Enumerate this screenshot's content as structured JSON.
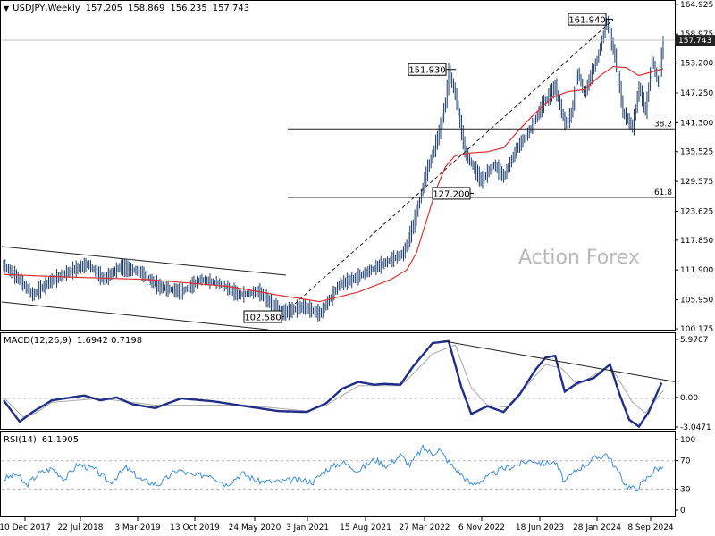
{
  "colors": {
    "price": "#1a3a68",
    "ma": "#e03030",
    "macd": "#1f2d8a",
    "signal": "#a8a8a8",
    "rsi": "#3d8fd8",
    "hline": "#202020",
    "grid_dash": "#b0b0b0",
    "last_price_bg": "#222222",
    "watermark": "#b9b9b9"
  },
  "header": {
    "symbol": "USDJPY,Weekly",
    "open": "157.205",
    "high": "158.869",
    "low": "156.235",
    "close": "157.743"
  },
  "watermark": "Action Forex",
  "chart_data": [
    {
      "type": "ohlc",
      "title": "USDJPY,Weekly",
      "ylim": [
        100.175,
        164.9
      ],
      "y_ticks": [
        "164.925",
        "158.975",
        "153.200",
        "147.250",
        "141.300",
        "135.525",
        "129.575",
        "123.625",
        "117.850",
        "111.900",
        "105.950",
        "100.175"
      ],
      "x_ticks": [
        "10 Dec 2017",
        "22 Jul 2018",
        "3 Mar 2019",
        "13 Oct 2019",
        "24 May 2020",
        "3 Jan 2021",
        "15 Aug 2021",
        "27 Mar 2022",
        "6 Nov 2022",
        "18 Jun 2023",
        "28 Jan 2024",
        "8 Sep 2024"
      ],
      "last_price": "157.743",
      "price_path": [
        [
          0,
          112.8
        ],
        [
          8,
          110.5
        ],
        [
          18,
          106.9
        ],
        [
          28,
          109.5
        ],
        [
          40,
          111.5
        ],
        [
          52,
          113.1
        ],
        [
          62,
          110.0
        ],
        [
          72,
          112.5
        ],
        [
          84,
          111.6
        ],
        [
          96,
          108.6
        ],
        [
          110,
          107.5
        ],
        [
          122,
          110.0
        ],
        [
          134,
          109.2
        ],
        [
          146,
          106.9
        ],
        [
          158,
          107.6
        ],
        [
          172,
          103.3
        ],
        [
          186,
          104.6
        ],
        [
          196,
          103.1
        ],
        [
          208,
          109.0
        ],
        [
          218,
          110.3
        ],
        [
          230,
          112.3
        ],
        [
          240,
          113.9
        ],
        [
          248,
          115.3
        ],
        [
          254,
          121.0
        ],
        [
          258,
          126.0
        ],
        [
          262,
          131.3
        ],
        [
          266,
          135.0
        ],
        [
          270,
          139.4
        ],
        [
          274,
          145.6
        ],
        [
          276,
          151.5
        ],
        [
          280,
          147.0
        ],
        [
          286,
          135.5
        ],
        [
          292,
          132.0
        ],
        [
          296,
          129.7
        ],
        [
          304,
          133.0
        ],
        [
          310,
          130.5
        ],
        [
          318,
          136.1
        ],
        [
          326,
          139.7
        ],
        [
          334,
          144.8
        ],
        [
          342,
          148.5
        ],
        [
          348,
          141.0
        ],
        [
          352,
          143.0
        ],
        [
          356,
          151.5
        ],
        [
          360,
          147.0
        ],
        [
          364,
          150.7
        ],
        [
          368,
          154.0
        ],
        [
          374,
          161.6
        ],
        [
          380,
          153.0
        ],
        [
          384,
          143.3
        ],
        [
          390,
          140.4
        ],
        [
          394,
          148.5
        ],
        [
          398,
          143.5
        ],
        [
          402,
          153.9
        ],
        [
          406,
          149.0
        ],
        [
          409,
          157.743
        ]
      ],
      "ma_path": [
        [
          0,
          111.0
        ],
        [
          40,
          110.5
        ],
        [
          90,
          110.0
        ],
        [
          140,
          108.6
        ],
        [
          170,
          106.9
        ],
        [
          196,
          105.6
        ],
        [
          220,
          107.5
        ],
        [
          240,
          110.0
        ],
        [
          250,
          111.9
        ],
        [
          256,
          115.3
        ],
        [
          262,
          121.5
        ],
        [
          268,
          127.8
        ],
        [
          274,
          132.5
        ],
        [
          280,
          134.7
        ],
        [
          290,
          135.3
        ],
        [
          300,
          135.5
        ],
        [
          310,
          136.3
        ],
        [
          320,
          140.0
        ],
        [
          330,
          143.3
        ],
        [
          340,
          146.3
        ],
        [
          350,
          147.5
        ],
        [
          360,
          147.9
        ],
        [
          370,
          150.7
        ],
        [
          378,
          152.5
        ],
        [
          386,
          152.3
        ],
        [
          394,
          150.7
        ],
        [
          409,
          152.1
        ]
      ],
      "annotations": [
        {
          "label": "161.940",
          "value": 161.94
        },
        {
          "label": "151.930",
          "value": 151.93
        },
        {
          "label": "127.200",
          "value": 127.2
        },
        {
          "label": "102.580",
          "value": 102.58
        }
      ],
      "fib_levels": [
        {
          "label": "38.2",
          "value": 140.07
        },
        {
          "label": "61.8",
          "value": 126.39
        }
      ]
    },
    {
      "type": "line",
      "title": "MACD(12,26,9)",
      "values_text": "1.6942 0.7198",
      "ylim": [
        -3.0471,
        5.9707
      ],
      "y_ticks": [
        "5.9707",
        "0.00",
        "-3.0471"
      ],
      "series": [
        {
          "name": "MACD",
          "points": [
            [
              0,
              -0.3
            ],
            [
              10,
              -2.5
            ],
            [
              18,
              -1.5
            ],
            [
              30,
              -0.3
            ],
            [
              50,
              0.2
            ],
            [
              60,
              -0.3
            ],
            [
              70,
              0.0
            ],
            [
              80,
              -0.7
            ],
            [
              94,
              -1.1
            ],
            [
              110,
              -0.1
            ],
            [
              130,
              -0.4
            ],
            [
              150,
              -0.9
            ],
            [
              170,
              -1.4
            ],
            [
              188,
              -1.5
            ],
            [
              200,
              -0.6
            ],
            [
              210,
              0.9
            ],
            [
              220,
              1.6
            ],
            [
              230,
              1.3
            ],
            [
              236,
              1.4
            ],
            [
              246,
              1.3
            ],
            [
              254,
              3.2
            ],
            [
              266,
              5.6
            ],
            [
              276,
              5.8
            ],
            [
              284,
              1.0
            ],
            [
              290,
              -1.7
            ],
            [
              300,
              -0.9
            ],
            [
              310,
              -1.5
            ],
            [
              320,
              0.3
            ],
            [
              330,
              2.9
            ],
            [
              336,
              4.1
            ],
            [
              342,
              4.3
            ],
            [
              348,
              0.6
            ],
            [
              356,
              1.5
            ],
            [
              366,
              2.0
            ],
            [
              376,
              3.4
            ],
            [
              382,
              0.3
            ],
            [
              388,
              -2.3
            ],
            [
              394,
              -3.0
            ],
            [
              400,
              -1.5
            ],
            [
              408,
              1.5
            ]
          ]
        },
        {
          "name": "Signal",
          "points": [
            [
              0,
              0.0
            ],
            [
              12,
              -2.0
            ],
            [
              20,
              -1.6
            ],
            [
              30,
              -0.5
            ],
            [
              60,
              -0.1
            ],
            [
              94,
              -0.8
            ],
            [
              150,
              -0.8
            ],
            [
              188,
              -1.4
            ],
            [
              200,
              -0.8
            ],
            [
              220,
              1.2
            ],
            [
              246,
              1.2
            ],
            [
              254,
              2.4
            ],
            [
              266,
              4.5
            ],
            [
              280,
              5.4
            ],
            [
              290,
              1.0
            ],
            [
              300,
              -0.8
            ],
            [
              312,
              -1.0
            ],
            [
              326,
              1.5
            ],
            [
              336,
              3.4
            ],
            [
              346,
              3.0
            ],
            [
              356,
              1.3
            ],
            [
              376,
              3.3
            ],
            [
              390,
              -0.5
            ],
            [
              398,
              -1.6
            ],
            [
              409,
              0.7
            ]
          ]
        }
      ],
      "trendline": {
        "from": [
          273,
          5.8
        ],
        "to": [
          409,
          2.9
        ]
      }
    },
    {
      "type": "line",
      "title": "RSI(14)",
      "value_text": "61.1905",
      "ylim": [
        0,
        100
      ],
      "y_ticks": [
        "100",
        "70",
        "30",
        "0"
      ],
      "levels": [
        70,
        30
      ],
      "series": [
        {
          "name": "RSI",
          "points": [
            [
              0,
              44
            ],
            [
              8,
              51
            ],
            [
              14,
              35
            ],
            [
              22,
              52
            ],
            [
              30,
              59
            ],
            [
              38,
              44
            ],
            [
              46,
              65
            ],
            [
              56,
              58
            ],
            [
              66,
              39
            ],
            [
              76,
              60
            ],
            [
              86,
              42
            ],
            [
              96,
              36
            ],
            [
              108,
              57
            ],
            [
              118,
              48
            ],
            [
              128,
              51
            ],
            [
              138,
              36
            ],
            [
              148,
              52
            ],
            [
              158,
              41
            ],
            [
              170,
              40
            ],
            [
              182,
              43
            ],
            [
              192,
              40
            ],
            [
              200,
              57
            ],
            [
              210,
              68
            ],
            [
              220,
              56
            ],
            [
              230,
              72
            ],
            [
              238,
              62
            ],
            [
              246,
              78
            ],
            [
              252,
              64
            ],
            [
              260,
              88
            ],
            [
              266,
              80
            ],
            [
              270,
              86
            ],
            [
              276,
              68
            ],
            [
              284,
              50
            ],
            [
              290,
              36
            ],
            [
              298,
              44
            ],
            [
              308,
              57
            ],
            [
              318,
              64
            ],
            [
              328,
              71
            ],
            [
              334,
              66
            ],
            [
              342,
              68
            ],
            [
              348,
              40
            ],
            [
              356,
              58
            ],
            [
              366,
              72
            ],
            [
              374,
              80
            ],
            [
              380,
              58
            ],
            [
              386,
              35
            ],
            [
              392,
              29
            ],
            [
              398,
              43
            ],
            [
              404,
              58
            ],
            [
              409,
              61.19
            ]
          ]
        }
      ]
    }
  ]
}
